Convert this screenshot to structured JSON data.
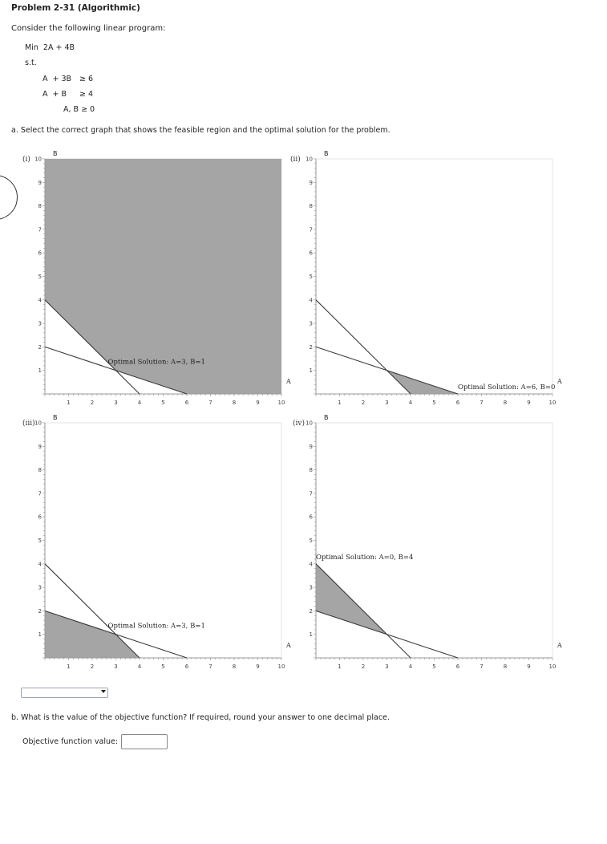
{
  "problem": {
    "title": "Problem 2-31 (Algorithmic)",
    "intro": "Consider the following linear program:",
    "objective": "Min  2A + 4B",
    "st": "s.t.",
    "constraints": [
      {
        "lhs": "A  + 3B",
        "rhs": "≥ 6"
      },
      {
        "lhs": "A  + B",
        "rhs": "≥ 4"
      }
    ],
    "nonneg": "A, B ≥ 0"
  },
  "part_a": {
    "question": "a. Select the correct graph that shows the feasible region and the optimal solution for the problem.",
    "dropdown_value": ""
  },
  "part_b": {
    "question": "b. What is the value of the objective function? If required, round your answer to one decimal place.",
    "label": "Objective function value:",
    "value": ""
  },
  "chart_data": [
    {
      "type": "area",
      "panel_label": "(i)",
      "ylabel": "B",
      "xlabel": "A",
      "xlim": [
        0,
        10
      ],
      "ylim": [
        0,
        10
      ],
      "x_ticks": [
        "1",
        "2",
        "3",
        "4",
        "5",
        "6",
        "7",
        "8",
        "9",
        "10"
      ],
      "y_ticks": [
        "1",
        "2",
        "3",
        "4",
        "5",
        "6",
        "7",
        "8",
        "9",
        "10"
      ],
      "lines": [
        {
          "name": "A + 3B = 6",
          "points": [
            [
              0,
              2
            ],
            [
              6,
              0
            ]
          ]
        },
        {
          "name": "A + B = 4",
          "points": [
            [
              0,
              4
            ],
            [
              4,
              0
            ]
          ]
        }
      ],
      "shaded_region": [
        [
          0,
          10
        ],
        [
          0,
          4
        ],
        [
          3,
          1
        ],
        [
          6,
          0
        ],
        [
          10,
          0
        ],
        [
          10,
          10
        ]
      ],
      "annotation": {
        "text": "Optimal Solution: A=3, B=1",
        "x": 3,
        "y": 1
      }
    },
    {
      "type": "area",
      "panel_label": "(ii)",
      "ylabel": "B",
      "xlabel": "A",
      "xlim": [
        0,
        10
      ],
      "ylim": [
        0,
        10
      ],
      "x_ticks": [
        "1",
        "2",
        "3",
        "4",
        "5",
        "6",
        "7",
        "8",
        "9",
        "10"
      ],
      "y_ticks": [
        "1",
        "2",
        "3",
        "4",
        "5",
        "6",
        "7",
        "8",
        "9",
        "10"
      ],
      "lines": [
        {
          "name": "A + 3B = 6",
          "points": [
            [
              0,
              2
            ],
            [
              6,
              0
            ]
          ]
        },
        {
          "name": "A + B = 4",
          "points": [
            [
              0,
              4
            ],
            [
              4,
              0
            ]
          ]
        }
      ],
      "shaded_region": [
        [
          3,
          1
        ],
        [
          4,
          0
        ],
        [
          6,
          0
        ]
      ],
      "annotation": {
        "text": "Optimal Solution: A=6, B=0",
        "x": 6,
        "y": 0
      }
    },
    {
      "type": "area",
      "panel_label": "(iii)",
      "ylabel": "B",
      "xlabel": "A",
      "xlim": [
        0,
        10
      ],
      "ylim": [
        0,
        10
      ],
      "x_ticks": [
        "1",
        "2",
        "3",
        "4",
        "5",
        "6",
        "7",
        "8",
        "9",
        "10"
      ],
      "y_ticks": [
        "1",
        "2",
        "3",
        "4",
        "5",
        "6",
        "7",
        "8",
        "9",
        "10"
      ],
      "lines": [
        {
          "name": "A + 3B = 6",
          "points": [
            [
              0,
              2
            ],
            [
              6,
              0
            ]
          ]
        },
        {
          "name": "A + B = 4",
          "points": [
            [
              0,
              4
            ],
            [
              4,
              0
            ]
          ]
        }
      ],
      "shaded_region": [
        [
          0,
          0
        ],
        [
          0,
          2
        ],
        [
          3,
          1
        ],
        [
          4,
          0
        ]
      ],
      "annotation": {
        "text": "Optimal Solution: A=3, B=1",
        "x": 3,
        "y": 1
      }
    },
    {
      "type": "area",
      "panel_label": "(iv)",
      "ylabel": "B",
      "xlabel": "A",
      "xlim": [
        0,
        10
      ],
      "ylim": [
        0,
        10
      ],
      "x_ticks": [
        "1",
        "2",
        "3",
        "4",
        "5",
        "6",
        "7",
        "8",
        "9",
        "10"
      ],
      "y_ticks": [
        "1",
        "2",
        "3",
        "4",
        "5",
        "6",
        "7",
        "8",
        "9",
        "10"
      ],
      "lines": [
        {
          "name": "A + 3B = 6",
          "points": [
            [
              0,
              2
            ],
            [
              6,
              0
            ]
          ]
        },
        {
          "name": "A + B = 4",
          "points": [
            [
              0,
              4
            ],
            [
              4,
              0
            ]
          ]
        }
      ],
      "shaded_region": [
        [
          0,
          4
        ],
        [
          0,
          2
        ],
        [
          3,
          1
        ]
      ],
      "annotation": {
        "text": "Optimal Solution: A=0, B=4",
        "x": 0,
        "y": 4
      }
    }
  ]
}
